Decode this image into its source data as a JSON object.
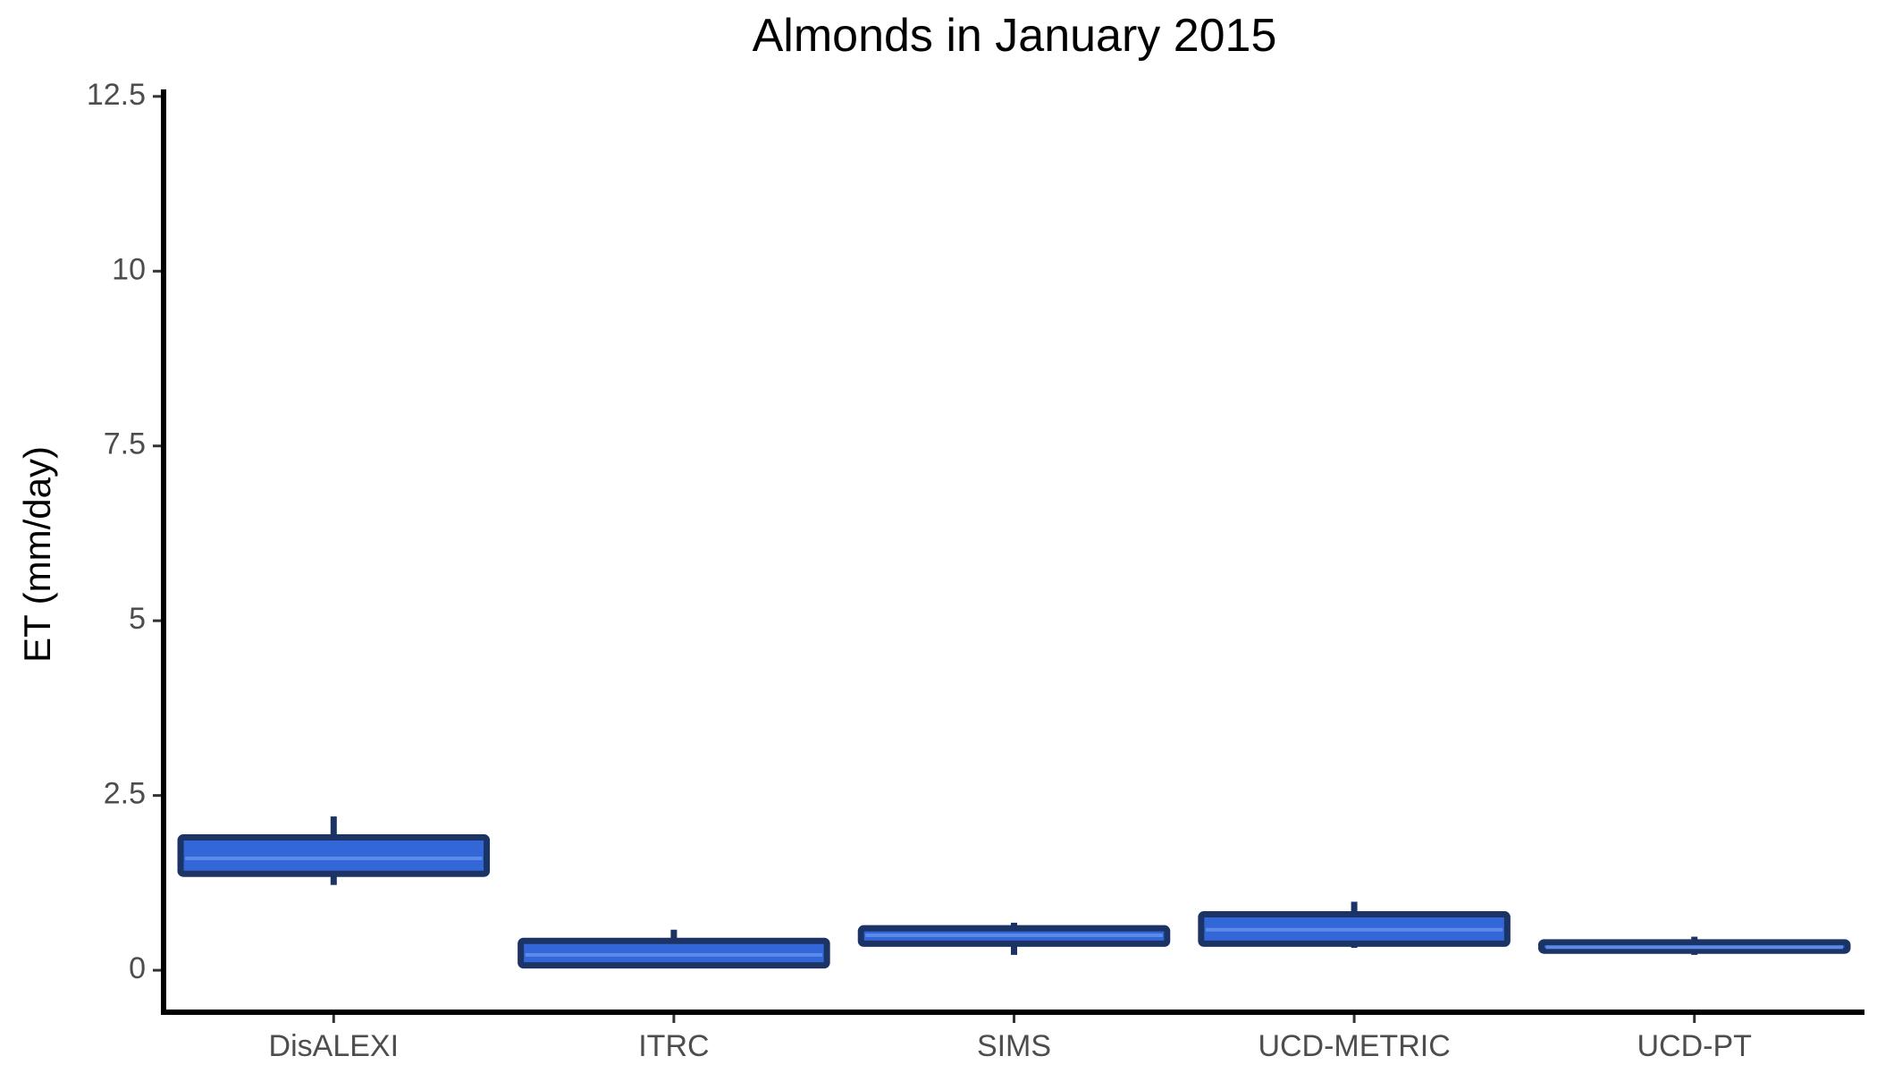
{
  "chart_data": {
    "type": "boxplot",
    "title": "Almonds in January 2015",
    "xlabel": "",
    "ylabel": "ET (mm/day)",
    "ylim": [
      -0.6,
      12.6
    ],
    "yticks": [
      0,
      2.5,
      5,
      7.5,
      10,
      12.5
    ],
    "ytick_labels": [
      "0",
      "2.5",
      "5",
      "7.5",
      "10",
      "12.5"
    ],
    "categories": [
      "DisALEXI",
      "ITRC",
      "SIMS",
      "UCD-METRIC",
      "UCD-PT"
    ],
    "boxes": [
      {
        "category": "DisALEXI",
        "whisker_low": 1.22,
        "q1": 1.38,
        "median": 1.6,
        "q3": 1.9,
        "whisker_high": 2.2
      },
      {
        "category": "ITRC",
        "whisker_low": 0.07,
        "q1": 0.07,
        "median": 0.22,
        "q3": 0.42,
        "whisker_high": 0.58
      },
      {
        "category": "SIMS",
        "whisker_low": 0.22,
        "q1": 0.38,
        "median": 0.5,
        "q3": 0.6,
        "whisker_high": 0.68
      },
      {
        "category": "UCD-METRIC",
        "whisker_low": 0.32,
        "q1": 0.38,
        "median": 0.58,
        "q3": 0.8,
        "whisker_high": 0.98
      },
      {
        "category": "UCD-PT",
        "whisker_low": 0.22,
        "q1": 0.28,
        "median": 0.33,
        "q3": 0.4,
        "whisker_high": 0.48
      }
    ],
    "grid": false,
    "colors": {
      "box_fill": "#3366d6",
      "box_stroke": "#1c3366",
      "median": "#5b8ae8",
      "axis": "#000000"
    }
  }
}
